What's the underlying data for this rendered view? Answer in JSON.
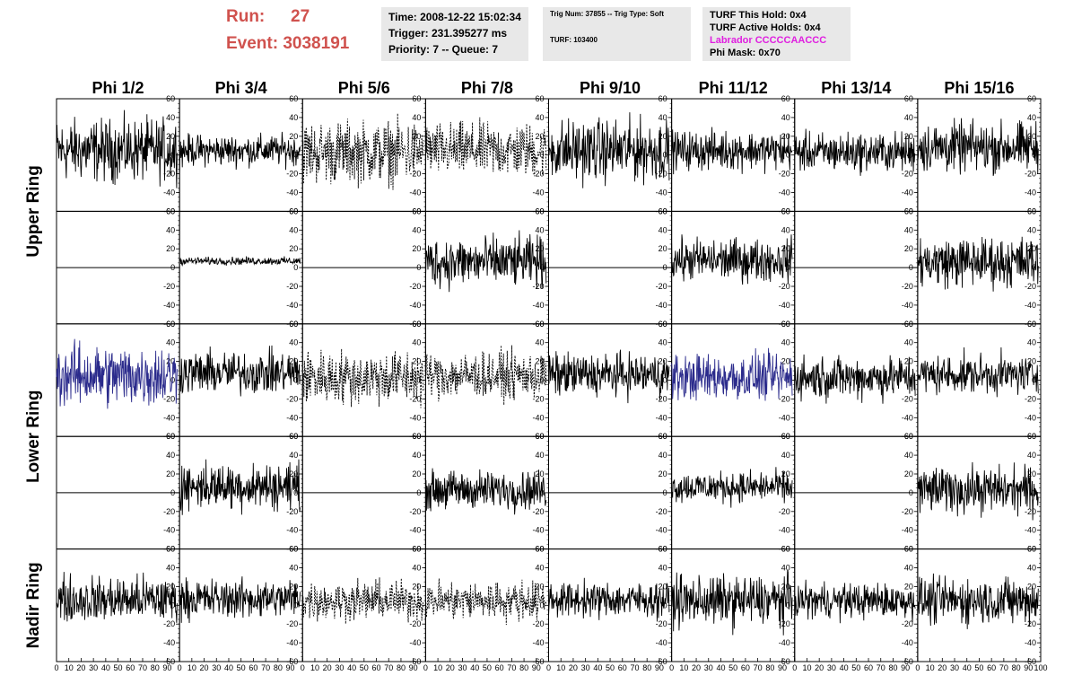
{
  "header": {
    "run_label": "Run:",
    "run_value": "27",
    "event_label": "Event:",
    "event_value": "3038191",
    "time_text": "Time: 2008-12-22 15:02:34",
    "trigger_text": "Trigger: 231.395277 ms",
    "priority_text": "Priority: 7 -- Queue: 7",
    "trig_text": "Trig Num: 37855 -- Trig Type: Soft",
    "turf_text": "TURF: 103400",
    "turf_hold_text": "TURF This Hold: 0x4",
    "turf_active_text": "TURF Active Holds: 0x4",
    "labrador_text": "Labrador CCCCCAACCC",
    "phi_mask_text": "Phi Mask: 0x70"
  },
  "colors": {
    "run_text": "#d0524e",
    "labrador_text": "#e020e0",
    "info_bg": "#e8e8e8",
    "trace_default": "#000000",
    "trace_highlight": "#2b2b8c"
  },
  "chart_data": {
    "type": "line",
    "columns": [
      "Phi 1/2",
      "Phi 3/4",
      "Phi 5/6",
      "Phi 7/8",
      "Phi 9/10",
      "Phi 11/12",
      "Phi 13/14",
      "Phi 15/16"
    ],
    "ring_labels": [
      {
        "label": "Upper Ring",
        "rows": [
          0,
          1
        ]
      },
      {
        "label": "Lower Ring",
        "rows": [
          2,
          3
        ]
      },
      {
        "label": "Nadir Ring",
        "rows": [
          4,
          4
        ]
      }
    ],
    "xlim": [
      0,
      100
    ],
    "ylim": [
      -60,
      60
    ],
    "x_ticks": [
      0,
      10,
      20,
      30,
      40,
      50,
      60,
      70,
      80,
      90,
      100
    ],
    "y_ticks": [
      -60,
      -40,
      -20,
      0,
      20,
      40,
      60
    ],
    "rows": [
      [
        {
          "style": "solid",
          "color": "#000000",
          "amp": 16,
          "offset": 5
        },
        {
          "style": "solid",
          "color": "#000000",
          "amp": 8,
          "offset": 5
        },
        {
          "style": "dashed",
          "color": "#000000",
          "amp": 16,
          "offset": 3
        },
        {
          "style": "dashed",
          "color": "#000000",
          "amp": 14,
          "offset": 5
        },
        {
          "style": "solid",
          "color": "#000000",
          "amp": 16,
          "offset": 5
        },
        {
          "style": "solid",
          "color": "#000000",
          "amp": 10,
          "offset": 5
        },
        {
          "style": "solid",
          "color": "#000000",
          "amp": 10,
          "offset": 3
        },
        {
          "style": "solid",
          "color": "#000000",
          "amp": 13,
          "offset": 8
        }
      ],
      [
        {
          "style": "flat",
          "color": "#000000",
          "amp": 0,
          "offset": 0
        },
        {
          "style": "solid",
          "color": "#000000",
          "amp": 2,
          "offset": 7
        },
        {
          "style": "flat",
          "color": "#000000",
          "amp": 0,
          "offset": 0
        },
        {
          "style": "solid",
          "color": "#000000",
          "amp": 13,
          "offset": 6
        },
        {
          "style": "flat",
          "color": "#000000",
          "amp": 0,
          "offset": 0
        },
        {
          "style": "solid",
          "color": "#000000",
          "amp": 11,
          "offset": 8
        },
        {
          "style": "flat",
          "color": "#000000",
          "amp": 0,
          "offset": 0
        },
        {
          "style": "solid",
          "color": "#000000",
          "amp": 13,
          "offset": 6
        }
      ],
      [
        {
          "style": "solid",
          "color": "#2b2b8c",
          "amp": 16,
          "offset": 5
        },
        {
          "style": "solid",
          "color": "#000000",
          "amp": 11,
          "offset": 8
        },
        {
          "style": "dashed",
          "color": "#000000",
          "amp": 14,
          "offset": 3
        },
        {
          "style": "dashed",
          "color": "#000000",
          "amp": 12,
          "offset": 5
        },
        {
          "style": "solid",
          "color": "#000000",
          "amp": 11,
          "offset": 6
        },
        {
          "style": "solid",
          "color": "#2b2b8c",
          "amp": 12,
          "offset": 3
        },
        {
          "style": "solid",
          "color": "#000000",
          "amp": 11,
          "offset": 3
        },
        {
          "style": "solid",
          "color": "#000000",
          "amp": 10,
          "offset": 6
        }
      ],
      [
        {
          "style": "flat",
          "color": "#000000",
          "amp": 0,
          "offset": 0
        },
        {
          "style": "solid",
          "color": "#000000",
          "amp": 12,
          "offset": 7
        },
        {
          "style": "flat",
          "color": "#000000",
          "amp": 0,
          "offset": 0
        },
        {
          "style": "solid",
          "color": "#000000",
          "amp": 10,
          "offset": 3
        },
        {
          "style": "flat",
          "color": "#000000",
          "amp": 0,
          "offset": 0
        },
        {
          "style": "solid",
          "color": "#000000",
          "amp": 8,
          "offset": 6
        },
        {
          "style": "flat",
          "color": "#000000",
          "amp": 0,
          "offset": 0
        },
        {
          "style": "solid",
          "color": "#000000",
          "amp": 12,
          "offset": 3
        }
      ],
      [
        {
          "style": "solid",
          "color": "#000000",
          "amp": 12,
          "offset": 6
        },
        {
          "style": "solid",
          "color": "#000000",
          "amp": 10,
          "offset": 7
        },
        {
          "style": "dashed",
          "color": "#000000",
          "amp": 10,
          "offset": 5
        },
        {
          "style": "dashed",
          "color": "#000000",
          "amp": 10,
          "offset": 5
        },
        {
          "style": "solid",
          "color": "#000000",
          "amp": 9,
          "offset": 6
        },
        {
          "style": "solid",
          "color": "#000000",
          "amp": 13,
          "offset": 5
        },
        {
          "style": "solid",
          "color": "#000000",
          "amp": 9,
          "offset": 5
        },
        {
          "style": "solid",
          "color": "#000000",
          "amp": 12,
          "offset": 5
        }
      ]
    ]
  }
}
